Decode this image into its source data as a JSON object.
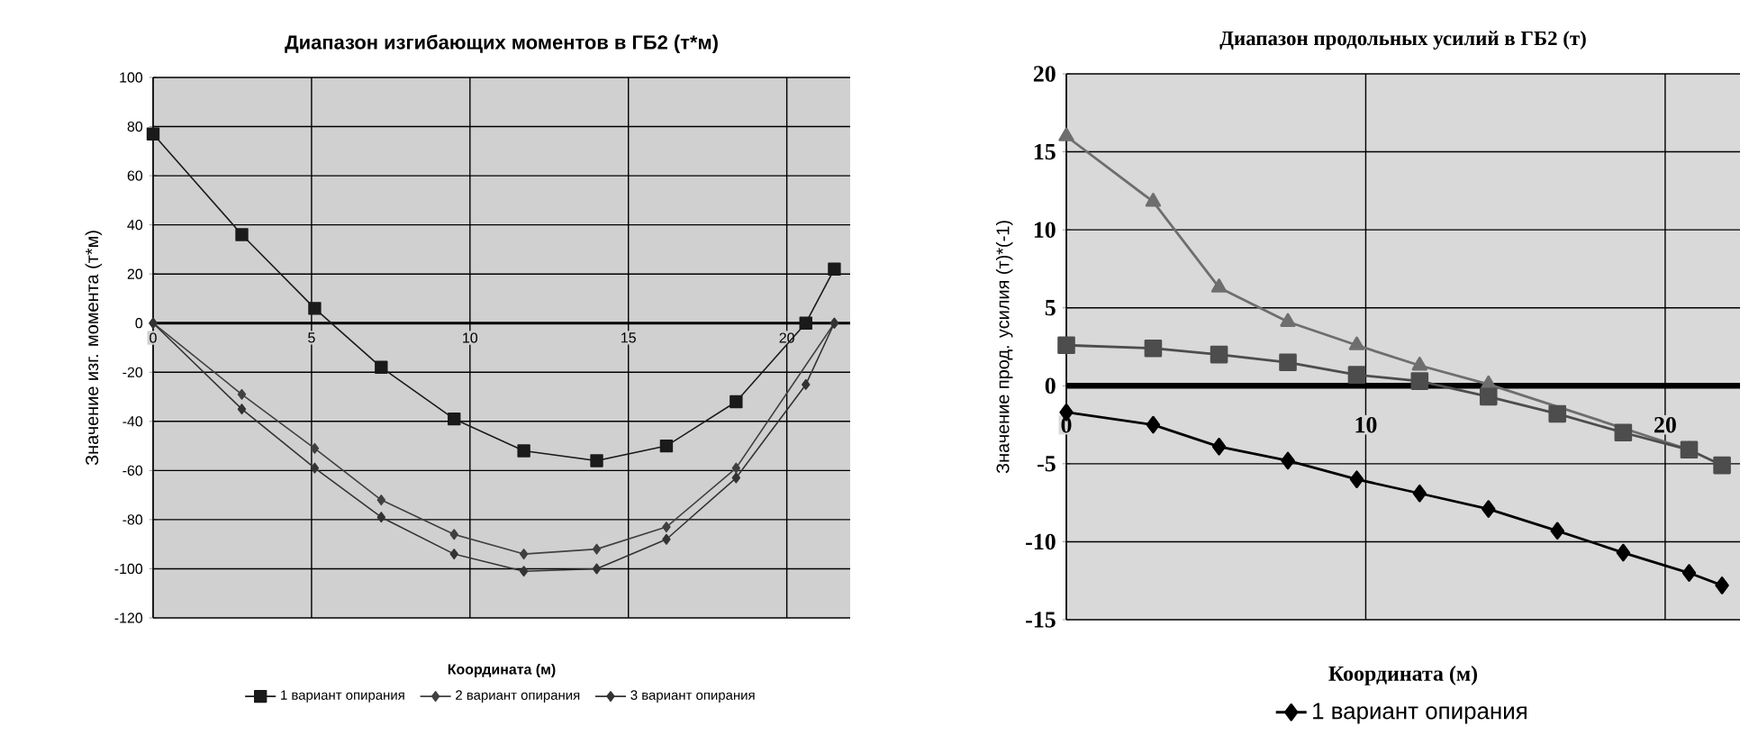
{
  "chart_data": [
    {
      "type": "line",
      "title": "Диапазон изгибающих моментов в ГБ2 (т*м)",
      "xlabel": "Координата (м)",
      "ylabel": "Значение изг. момента (т*м)",
      "x": [
        0,
        2.8,
        5.1,
        7.2,
        9.5,
        11.7,
        14.0,
        16.2,
        18.4,
        20.6,
        21.5
      ],
      "xlim": [
        0,
        22
      ],
      "ylim": [
        -120,
        100
      ],
      "xticks": [
        0,
        5,
        10,
        15,
        20
      ],
      "yticks": [
        -120,
        -100,
        -80,
        -60,
        -40,
        -20,
        0,
        20,
        40,
        60,
        80,
        100
      ],
      "grid": true,
      "legend": "bottom",
      "series": [
        {
          "name": "1 вариант опирания",
          "color": "#1a1a1a",
          "marker": "square",
          "values": [
            77,
            36,
            6,
            -18,
            -39,
            -52,
            -56,
            -50,
            -32,
            0,
            22
          ]
        },
        {
          "name": "2 вариант опирания",
          "color": "#404040",
          "marker": "diamond",
          "values": [
            0,
            -29,
            -51,
            -72,
            -86,
            -94,
            -92,
            -83,
            -59,
            null,
            0
          ]
        },
        {
          "name": "3 вариант опирания",
          "color": "#333333",
          "marker": "diamond",
          "values": [
            0,
            -35,
            -59,
            -79,
            -94,
            -101,
            -100,
            -88,
            -63,
            -25,
            0
          ]
        }
      ]
    },
    {
      "type": "line",
      "title": "Диапазон продольных усилий в ГБ2 (т)",
      "xlabel": "Координата (м)",
      "ylabel": "Значение прод. усилия (т)*(-1)",
      "x": [
        0,
        2.9,
        5.1,
        7.4,
        9.7,
        11.8,
        14.1,
        16.4,
        18.6,
        20.8,
        21.9
      ],
      "xlim": [
        0,
        22.5
      ],
      "ylim": [
        -15,
        20
      ],
      "xticks": [
        0,
        10,
        20
      ],
      "yticks": [
        -15,
        -10,
        -5,
        0,
        5,
        10,
        15,
        20
      ],
      "grid": true,
      "legend": "bottom",
      "series": [
        {
          "name": "1 вариант опирания",
          "color": "#000000",
          "marker": "diamond",
          "values": [
            -1.7,
            -2.5,
            -3.9,
            -4.8,
            -6.0,
            -6.9,
            -7.9,
            -9.3,
            -10.7,
            -12.0,
            -12.8
          ]
        },
        {
          "color": "#6e6e6e",
          "marker": "triangle",
          "values": [
            16.0,
            11.8,
            6.3,
            4.1,
            2.6,
            1.3,
            0.1,
            null,
            null,
            -4.1,
            null
          ]
        },
        {
          "color": "#4d4d4d",
          "marker": "square",
          "values": [
            2.6,
            2.4,
            2.0,
            1.5,
            0.7,
            0.3,
            -0.7,
            -1.8,
            -3.0,
            -4.1,
            -5.1
          ]
        }
      ]
    }
  ]
}
